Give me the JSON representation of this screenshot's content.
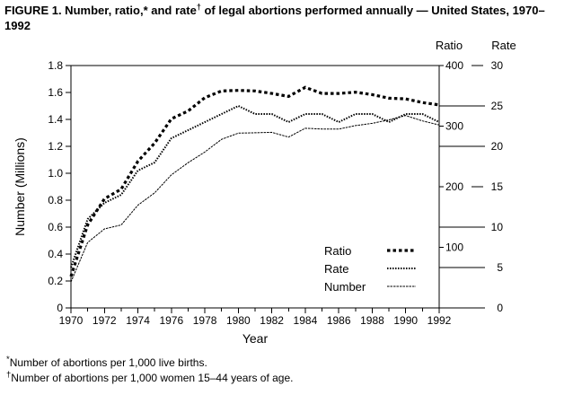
{
  "figure": {
    "title_prefix": "FIGURE 1. Number, ratio,* and rate",
    "title_sup": "†",
    "title_suffix": " of legal abortions performed annually — United States, 1970–1992"
  },
  "axes": {
    "left_title": "Number (Millions)",
    "x_title": "Year",
    "right_headers": {
      "ratio": "Ratio",
      "rate": "Rate"
    },
    "left_tick_labels": [
      "1.8",
      "1.6",
      "1.4",
      "1.2",
      "1.0",
      "0.8",
      "0.6",
      "0.4",
      "0.2",
      "0"
    ],
    "ratio_tick_labels": [
      "400",
      "300",
      "200",
      "100"
    ],
    "rate_ticks": [
      {
        "label": "30",
        "full_line": false
      },
      {
        "label": "25",
        "full_line": true
      },
      {
        "label": "20",
        "full_line": true
      },
      {
        "label": "15",
        "full_line": false
      },
      {
        "label": "10",
        "full_line": true
      },
      {
        "label": "5",
        "full_line": true
      },
      {
        "label": "0",
        "full_line": true
      }
    ],
    "year_tick_labels": [
      "1970",
      "1972",
      "1974",
      "1976",
      "1978",
      "1980",
      "1982",
      "1984",
      "1986",
      "1988",
      "1990",
      "1992"
    ]
  },
  "legend": {
    "items": [
      {
        "label": "Ratio",
        "series": "ratio"
      },
      {
        "label": "Rate",
        "series": "rate"
      },
      {
        "label": "Number",
        "series": "number"
      }
    ]
  },
  "footnotes": [
    {
      "marker": "*",
      "text": "Number of abortions per 1,000 live births."
    },
    {
      "marker": "†",
      "text": "Number of abortions per 1,000 women 15–44 years of age."
    }
  ],
  "colors": {
    "ink": "#000000",
    "background": "#ffffff"
  },
  "chart_data": {
    "type": "line",
    "title": "FIGURE 1. Number, ratio, and rate of legal abortions performed annually — United States, 1970–1992",
    "xlabel": "Year",
    "ylabel_left": "Number (Millions)",
    "ylabel_right_1": "Ratio (abortions per 1,000 live births)",
    "ylabel_right_2": "Rate (abortions per 1,000 women 15–44 years of age)",
    "grid": false,
    "legend_position": "inside-lower-right",
    "x": [
      1970,
      1971,
      1972,
      1973,
      1974,
      1975,
      1976,
      1977,
      1978,
      1979,
      1980,
      1981,
      1982,
      1983,
      1984,
      1985,
      1986,
      1987,
      1988,
      1989,
      1990,
      1991,
      1992
    ],
    "axis_ranges": {
      "number": [
        0,
        1.8
      ],
      "ratio": [
        0,
        400
      ],
      "rate": [
        0,
        30
      ]
    },
    "series": [
      {
        "name": "Number",
        "scale": "number",
        "unit": "millions of abortions",
        "values": [
          0.193,
          0.486,
          0.587,
          0.616,
          0.763,
          0.855,
          0.988,
          1.079,
          1.158,
          1.252,
          1.298,
          1.301,
          1.304,
          1.269,
          1.334,
          1.329,
          1.328,
          1.354,
          1.371,
          1.397,
          1.429,
          1.389,
          1.359
        ]
      },
      {
        "name": "Rate",
        "scale": "rate",
        "unit": "abortions per 1,000 women 15–44 years of age",
        "values": [
          5,
          11,
          13,
          14,
          17,
          18,
          21,
          22,
          23,
          24,
          25,
          24,
          24,
          23,
          24,
          24,
          23,
          24,
          24,
          23,
          24,
          24,
          23
        ]
      },
      {
        "name": "Ratio",
        "scale": "ratio",
        "unit": "abortions per 1,000 live births",
        "values": [
          52,
          137,
          180,
          196,
          242,
          272,
          312,
          325,
          347,
          358,
          359,
          358,
          354,
          349,
          364,
          354,
          354,
          356,
          352,
          346,
          345,
          339,
          335
        ]
      }
    ]
  }
}
